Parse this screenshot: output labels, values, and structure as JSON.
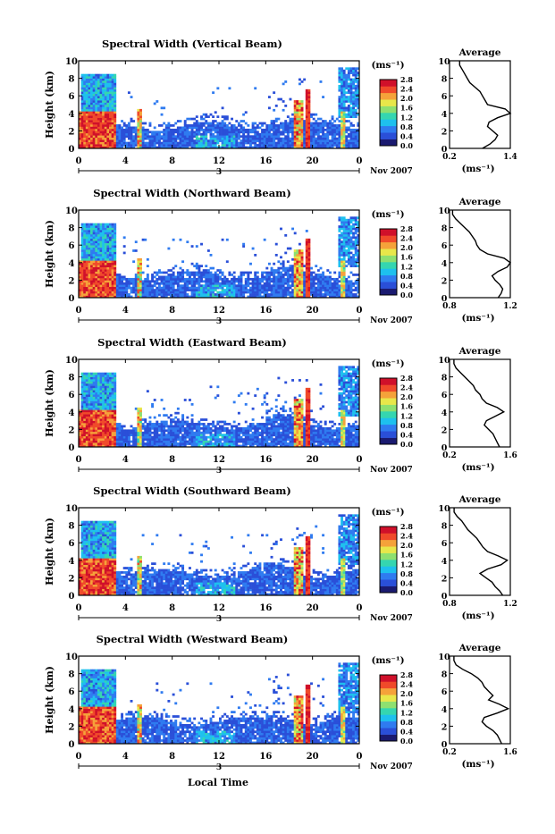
{
  "figure": {
    "date_label": "Nov 2007",
    "bottom_xlabel": "Local Time",
    "colorbar_unit": "(ms⁻¹)",
    "colorbar_ticks": [
      "0.0",
      "0.4",
      "0.8",
      "1.2",
      "1.6",
      "2.0",
      "2.4",
      "2.8"
    ],
    "colorbar_colors": [
      "#1a1a70",
      "#2a4fd8",
      "#2f7bf0",
      "#1ec0ee",
      "#35d6b0",
      "#8ee070",
      "#e8e74a",
      "#f5a23a",
      "#f04a2a",
      "#d0102a"
    ],
    "date_tick": "3",
    "avg_title": "Average",
    "avg_xlabel": "(ms⁻¹)"
  },
  "chart_data": [
    {
      "type": "heatmap",
      "title": "Spectral Width (Vertical Beam)",
      "ylabel": "Height (km)",
      "xlim": [
        0,
        24
      ],
      "ylim": [
        0,
        10
      ],
      "xticks": [
        "0",
        "4",
        "8",
        "12",
        "16",
        "20",
        "0"
      ],
      "yticks": [
        "0",
        "2",
        "4",
        "6",
        "8",
        "10"
      ],
      "avg": {
        "type": "line",
        "title": "Average",
        "xlim": [
          0.2,
          1.4
        ],
        "xticks": [
          "0.2",
          "1.4"
        ],
        "height": [
          0,
          0.5,
          1,
          1.5,
          2,
          2.5,
          3,
          3.5,
          4,
          4.5,
          5,
          5.5,
          6,
          6.5,
          7,
          7.5,
          8,
          8.5,
          9,
          9.5
        ],
        "values": [
          0.85,
          1.0,
          1.1,
          1.15,
          1.05,
          0.95,
          0.98,
          1.15,
          1.4,
          1.3,
          0.95,
          0.9,
          0.85,
          0.8,
          0.7,
          0.6,
          0.55,
          0.5,
          0.45,
          0.4
        ]
      }
    },
    {
      "type": "heatmap",
      "title": "Spectral Width (Northward Beam)",
      "ylabel": "Height (km)",
      "xlim": [
        0,
        24
      ],
      "ylim": [
        0,
        10
      ],
      "xticks": [
        "0",
        "4",
        "8",
        "12",
        "16",
        "20",
        "0"
      ],
      "yticks": [
        "0",
        "2",
        "4",
        "6",
        "8",
        "10"
      ],
      "avg": {
        "type": "line",
        "title": "Average",
        "xlim": [
          0.8,
          1.2
        ],
        "xticks": [
          "0.8",
          "1.2"
        ],
        "height": [
          0,
          0.5,
          1,
          1.5,
          2,
          2.5,
          3,
          3.5,
          4,
          4.5,
          5,
          5.5,
          6,
          6.5,
          7,
          7.5,
          8,
          8.5,
          9,
          9.5
        ],
        "values": [
          1.12,
          1.14,
          1.15,
          1.13,
          1.1,
          1.08,
          1.12,
          1.18,
          1.2,
          1.16,
          1.05,
          1.0,
          0.98,
          0.97,
          0.95,
          0.93,
          0.9,
          0.87,
          0.84,
          0.82
        ]
      }
    },
    {
      "type": "heatmap",
      "title": "Spectral Width (Eastward Beam)",
      "ylabel": "Height (km)",
      "xlim": [
        0,
        24
      ],
      "ylim": [
        0,
        10
      ],
      "xticks": [
        "0",
        "4",
        "8",
        "12",
        "16",
        "20",
        "0"
      ],
      "yticks": [
        "0",
        "2",
        "4",
        "6",
        "8",
        "10"
      ],
      "avg": {
        "type": "line",
        "title": "Average",
        "xlim": [
          0.2,
          1.6
        ],
        "xticks": [
          "0.2",
          "1.6"
        ],
        "height": [
          0,
          0.5,
          1,
          1.5,
          2,
          2.5,
          3,
          3.5,
          4,
          4.5,
          5,
          5.5,
          6,
          6.5,
          7,
          7.5,
          8,
          8.5,
          9,
          9.5
        ],
        "values": [
          1.35,
          1.3,
          1.25,
          1.2,
          1.1,
          1.0,
          1.05,
          1.25,
          1.45,
          1.3,
          1.05,
          0.95,
          0.9,
          0.8,
          0.75,
          0.65,
          0.55,
          0.45,
          0.35,
          0.3
        ]
      }
    },
    {
      "type": "heatmap",
      "title": "Spectral Width (Southward Beam)",
      "ylabel": "Height (km)",
      "xlim": [
        0,
        24
      ],
      "ylim": [
        0,
        10
      ],
      "xticks": [
        "0",
        "4",
        "8",
        "12",
        "16",
        "20",
        "0"
      ],
      "yticks": [
        "0",
        "2",
        "4",
        "6",
        "8",
        "10"
      ],
      "avg": {
        "type": "line",
        "title": "Average",
        "xlim": [
          0.8,
          1.2
        ],
        "xticks": [
          "0.8",
          "1.2"
        ],
        "height": [
          0,
          0.5,
          1,
          1.5,
          2,
          2.5,
          3,
          3.5,
          4,
          4.5,
          5,
          5.5,
          6,
          6.5,
          7,
          7.5,
          8,
          8.5,
          9,
          9.5
        ],
        "values": [
          1.15,
          1.13,
          1.1,
          1.08,
          1.04,
          1.0,
          1.05,
          1.14,
          1.18,
          1.12,
          1.05,
          1.02,
          1.0,
          0.98,
          0.95,
          0.92,
          0.9,
          0.88,
          0.85,
          0.83
        ]
      }
    },
    {
      "type": "heatmap",
      "title": "Spectral Width (Westward Beam)",
      "ylabel": "Height (km)",
      "xlim": [
        0,
        24
      ],
      "ylim": [
        0,
        10
      ],
      "xticks": [
        "0",
        "4",
        "8",
        "12",
        "16",
        "20",
        "0"
      ],
      "yticks": [
        "0",
        "2",
        "4",
        "6",
        "8",
        "10"
      ],
      "avg": {
        "type": "line",
        "title": "Average",
        "xlim": [
          0.2,
          1.6
        ],
        "xticks": [
          "0.2",
          "1.6"
        ],
        "height": [
          0,
          0.5,
          1,
          1.5,
          2,
          2.5,
          3,
          3.5,
          4,
          4.5,
          5,
          5.5,
          6,
          6.5,
          7,
          7.5,
          8,
          8.5,
          9,
          9.5
        ],
        "values": [
          1.4,
          1.35,
          1.3,
          1.2,
          1.05,
          0.95,
          1.0,
          1.3,
          1.55,
          1.35,
          1.1,
          1.2,
          1.1,
          1.0,
          0.95,
          0.85,
          0.7,
          0.5,
          0.35,
          0.3
        ]
      }
    }
  ]
}
